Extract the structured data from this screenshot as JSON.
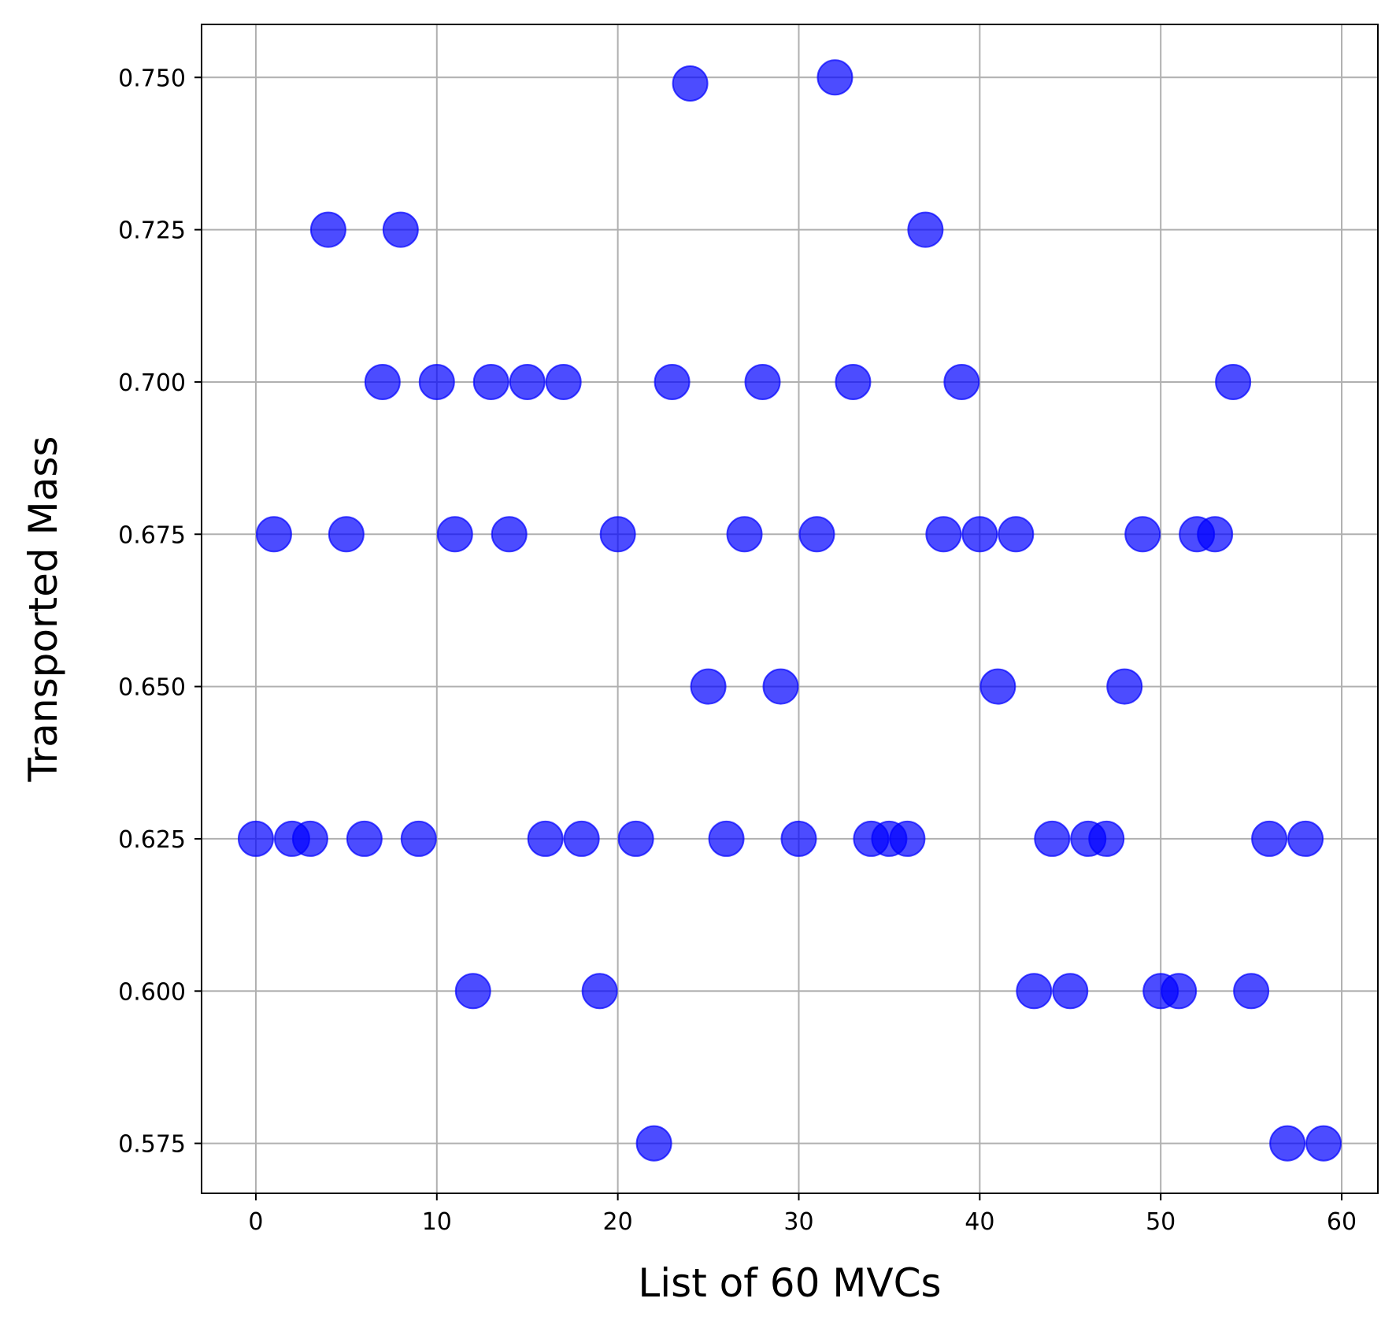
{
  "chart_data": {
    "type": "scatter",
    "title": "",
    "xlabel": "List of 60 MVCs",
    "ylabel": "Transported Mass",
    "xlim": [
      -3,
      62
    ],
    "ylim": [
      0.5668,
      0.7587
    ],
    "xticks": [
      0,
      10,
      20,
      30,
      40,
      50,
      60
    ],
    "xtick_labels": [
      "0",
      "10",
      "20",
      "30",
      "40",
      "50",
      "60"
    ],
    "yticks": [
      0.575,
      0.6,
      0.625,
      0.65,
      0.675,
      0.7,
      0.725,
      0.75
    ],
    "ytick_labels": [
      "0.575",
      "0.600",
      "0.625",
      "0.650",
      "0.675",
      "0.700",
      "0.725",
      "0.750"
    ],
    "grid": true,
    "legend": "none",
    "marker_color": "#0000ff",
    "marker_opacity": 0.7,
    "grid_color": "#b0b0b0",
    "x": [
      0,
      1,
      2,
      3,
      4,
      5,
      6,
      7,
      8,
      9,
      10,
      11,
      12,
      13,
      14,
      15,
      16,
      17,
      18,
      19,
      20,
      21,
      22,
      23,
      24,
      25,
      26,
      27,
      28,
      29,
      30,
      31,
      32,
      33,
      34,
      35,
      36,
      37,
      38,
      39,
      40,
      41,
      42,
      43,
      44,
      45,
      46,
      47,
      48,
      49,
      50,
      51,
      52,
      53,
      54,
      55,
      56,
      57,
      58,
      59
    ],
    "y": [
      0.625,
      0.675,
      0.625,
      0.625,
      0.725,
      0.675,
      0.625,
      0.7,
      0.725,
      0.625,
      0.7,
      0.675,
      0.6,
      0.7,
      0.675,
      0.7,
      0.625,
      0.7,
      0.625,
      0.6,
      0.675,
      0.625,
      0.575,
      0.7,
      0.749,
      0.65,
      0.625,
      0.675,
      0.7,
      0.65,
      0.625,
      0.675,
      0.75,
      0.7,
      0.625,
      0.625,
      0.625,
      0.725,
      0.675,
      0.7,
      0.675,
      0.65,
      0.675,
      0.6,
      0.625,
      0.6,
      0.625,
      0.625,
      0.65,
      0.675,
      0.6,
      0.6,
      0.675,
      0.675,
      0.7,
      0.6,
      0.625,
      0.575,
      0.625,
      0.575
    ]
  }
}
